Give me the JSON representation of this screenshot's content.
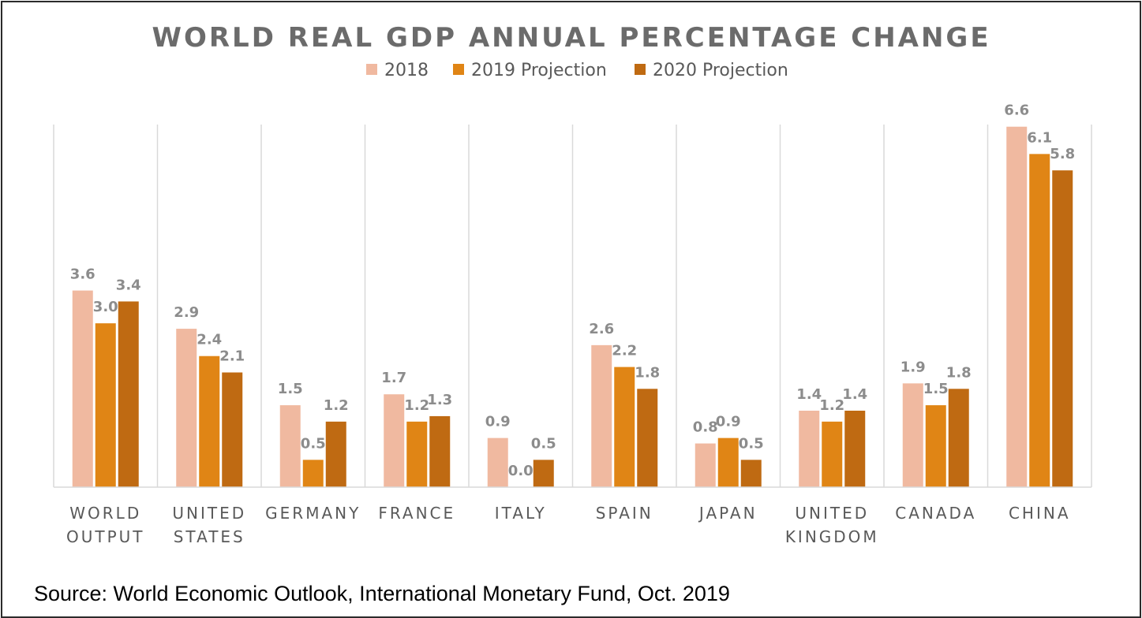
{
  "chart_data": {
    "type": "bar",
    "title": "WORLD REAL GDP ANNUAL PERCENTAGE CHANGE",
    "categories": [
      [
        "WORLD",
        "OUTPUT"
      ],
      [
        "UNITED",
        "STATES"
      ],
      [
        "GERMANY"
      ],
      [
        "FRANCE"
      ],
      [
        "ITALY"
      ],
      [
        "SPAIN"
      ],
      [
        "JAPAN"
      ],
      [
        "UNITED",
        "KINGDOM"
      ],
      [
        "CANADA"
      ],
      [
        "CHINA"
      ]
    ],
    "series": [
      {
        "name": "2018",
        "color": "#f0b9a0",
        "values": [
          3.6,
          2.9,
          1.5,
          1.7,
          0.9,
          2.6,
          0.8,
          1.4,
          1.9,
          6.6
        ]
      },
      {
        "name": "2019 Projection",
        "color": "#e08515",
        "values": [
          3.0,
          2.4,
          0.5,
          1.2,
          0.0,
          2.2,
          0.9,
          1.2,
          1.5,
          6.1
        ]
      },
      {
        "name": "2020 Projection",
        "color": "#bf6a12",
        "values": [
          3.4,
          2.1,
          1.2,
          1.3,
          0.5,
          1.8,
          0.5,
          1.4,
          1.8,
          5.8
        ]
      }
    ],
    "value_labels": [
      [
        "3.6",
        "2.9",
        "1.5",
        "1.7",
        "0.9",
        "2.6",
        "0.8",
        "1.4",
        "1.9",
        "6.6"
      ],
      [
        "3.0",
        "2.4",
        "0.5",
        "1.2",
        "0.0",
        "2.2",
        "0.9",
        "1.2",
        "1.5",
        "6.1"
      ],
      [
        "3.4",
        "2.1",
        "1.2",
        "1.3",
        "0.5",
        "1.8",
        "0.5",
        "1.4",
        "1.8",
        "5.8"
      ]
    ],
    "xlabel": "",
    "ylabel": "",
    "ylim": [
      0,
      7
    ],
    "legend_position": "top",
    "grid": "vertical category separators",
    "gridline_color": "#d9d9d9"
  },
  "source": "Source: World Economic Outlook, International Monetary Fund, Oct. 2019"
}
